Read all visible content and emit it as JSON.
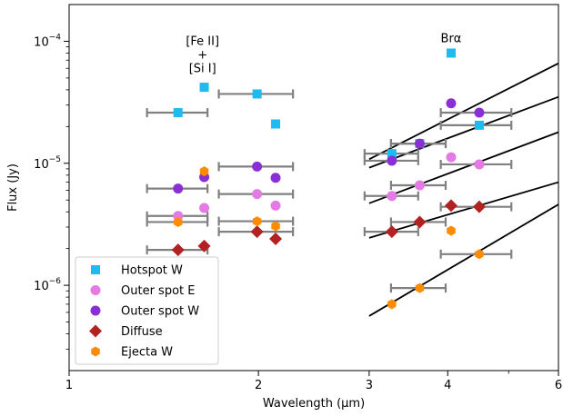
{
  "chart_data": {
    "type": "scatter",
    "xlabel": "Wavelength (μm)",
    "ylabel": "Flux (Jy)",
    "xscale": "log",
    "yscale": "log",
    "xlim": [
      1,
      6
    ],
    "ylim": [
      2e-07,
      0.0002
    ],
    "xticks": [
      {
        "value": 1,
        "label": "1"
      },
      {
        "value": 2,
        "label": "2"
      },
      {
        "value": 3,
        "label": "3"
      },
      {
        "value": 4,
        "label": "4"
      },
      {
        "value": 6,
        "label": "6"
      }
    ],
    "yticks": [
      {
        "value": 1e-06,
        "base": "10",
        "exp": "−6"
      },
      {
        "value": 1e-05,
        "base": "10",
        "exp": "−5"
      },
      {
        "value": 0.0001,
        "base": "10",
        "exp": "−4"
      }
    ],
    "grid": false,
    "legend_position": "bottom-left",
    "annotations": [
      {
        "lines": [
          "[Fe II]",
          "+",
          "[Si I]"
        ],
        "x": 1.63,
        "y": 9e-05
      },
      {
        "lines": [
          "Brα"
        ],
        "x": 4.05,
        "y": 9.5e-05
      }
    ],
    "series": [
      {
        "name": "Hotspot W",
        "color": "#1ebbf0",
        "marker": "square",
        "points": [
          {
            "x": 1.49,
            "y": 2.6e-05,
            "xerr": [
              1.33,
              1.66
            ]
          },
          {
            "x": 1.64,
            "y": 4.2e-05
          },
          {
            "x": 1.99,
            "y": 3.7e-05,
            "xerr": [
              1.73,
              2.27
            ]
          },
          {
            "x": 2.13,
            "y": 2.1e-05
          },
          {
            "x": 3.26,
            "y": 1.2e-05,
            "xerr": [
              2.95,
              3.59
            ]
          },
          {
            "x": 3.61,
            "y": 1.45e-05,
            "xerr": [
              3.25,
              3.97
            ]
          },
          {
            "x": 4.05,
            "y": 8e-05
          },
          {
            "x": 4.49,
            "y": 2.05e-05,
            "xerr": [
              3.9,
              5.05
            ]
          }
        ]
      },
      {
        "name": "Outer spot E",
        "color": "#e47ae4",
        "marker": "circle",
        "points": [
          {
            "x": 1.49,
            "y": 3.7e-06,
            "xerr": [
              1.33,
              1.66
            ]
          },
          {
            "x": 1.64,
            "y": 4.3e-06
          },
          {
            "x": 1.99,
            "y": 5.6e-06,
            "xerr": [
              1.73,
              2.27
            ]
          },
          {
            "x": 2.13,
            "y": 4.5e-06
          },
          {
            "x": 3.26,
            "y": 5.4e-06,
            "xerr": [
              2.95,
              3.59
            ]
          },
          {
            "x": 3.61,
            "y": 6.6e-06,
            "xerr": [
              3.25,
              3.97
            ]
          },
          {
            "x": 4.05,
            "y": 1.12e-05
          },
          {
            "x": 4.49,
            "y": 9.8e-06,
            "xerr": [
              3.9,
              5.05
            ]
          }
        ]
      },
      {
        "name": "Outer spot W",
        "color": "#8a2fd6",
        "marker": "circle",
        "points": [
          {
            "x": 1.49,
            "y": 6.2e-06,
            "xerr": [
              1.33,
              1.66
            ]
          },
          {
            "x": 1.64,
            "y": 7.7e-06
          },
          {
            "x": 1.99,
            "y": 9.4e-06,
            "xerr": [
              1.73,
              2.27
            ]
          },
          {
            "x": 2.13,
            "y": 7.6e-06
          },
          {
            "x": 3.26,
            "y": 1.05e-05,
            "xerr": [
              2.95,
              3.59
            ]
          },
          {
            "x": 3.61,
            "y": 1.45e-05,
            "xerr": [
              3.25,
              3.97
            ]
          },
          {
            "x": 4.05,
            "y": 3.1e-05
          },
          {
            "x": 4.49,
            "y": 2.6e-05,
            "xerr": [
              3.9,
              5.05
            ]
          }
        ]
      },
      {
        "name": "Diffuse",
        "color": "#b22222",
        "marker": "diamond",
        "points": [
          {
            "x": 1.49,
            "y": 1.95e-06,
            "xerr": [
              1.33,
              1.66
            ]
          },
          {
            "x": 1.64,
            "y": 2.1e-06
          },
          {
            "x": 1.99,
            "y": 2.75e-06,
            "xerr": [
              1.73,
              2.27
            ]
          },
          {
            "x": 2.13,
            "y": 2.4e-06
          },
          {
            "x": 3.26,
            "y": 2.75e-06,
            "xerr": [
              2.95,
              3.59
            ]
          },
          {
            "x": 3.61,
            "y": 3.3e-06,
            "xerr": [
              3.25,
              3.97
            ]
          },
          {
            "x": 4.05,
            "y": 4.5e-06
          },
          {
            "x": 4.49,
            "y": 4.4e-06,
            "xerr": [
              3.9,
              5.05
            ]
          }
        ]
      },
      {
        "name": "Ejecta W",
        "color": "#ff8c00",
        "marker": "hexagon",
        "points": [
          {
            "x": 1.49,
            "y": 3.3e-06,
            "xerr": [
              1.33,
              1.66
            ]
          },
          {
            "x": 1.64,
            "y": 8.6e-06
          },
          {
            "x": 1.99,
            "y": 3.35e-06,
            "xerr": [
              1.73,
              2.27
            ]
          },
          {
            "x": 2.13,
            "y": 3.05e-06
          },
          {
            "x": 3.26,
            "y": 7e-07
          },
          {
            "x": 3.61,
            "y": 9.5e-07,
            "xerr": [
              3.25,
              3.97
            ]
          },
          {
            "x": 4.05,
            "y": 2.8e-06
          },
          {
            "x": 4.49,
            "y": 1.8e-06,
            "xerr": [
              3.9,
              5.05
            ]
          }
        ]
      }
    ],
    "fit_lines": [
      {
        "x": [
          3.0,
          6.0
        ],
        "y": [
          1.08e-05,
          6.6e-05
        ]
      },
      {
        "x": [
          3.0,
          6.0
        ],
        "y": [
          9.2e-06,
          3.5e-05
        ]
      },
      {
        "x": [
          3.0,
          6.0
        ],
        "y": [
          4.7e-06,
          1.8e-05
        ]
      },
      {
        "x": [
          3.0,
          6.0
        ],
        "y": [
          2.45e-06,
          7e-06
        ]
      },
      {
        "x": [
          3.0,
          6.0
        ],
        "y": [
          5.6e-07,
          4.6e-06
        ]
      }
    ]
  }
}
